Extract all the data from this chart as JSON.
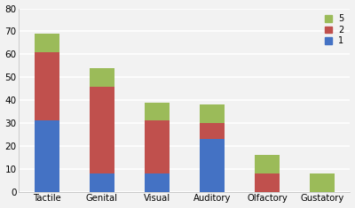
{
  "categories": [
    "Tactile",
    "Genital",
    "Visual",
    "Auditory",
    "Olfactory",
    "Gustatory"
  ],
  "series": {
    "1": [
      31,
      8,
      8,
      23,
      0,
      0
    ],
    "2": [
      30,
      38,
      23,
      7,
      8,
      0
    ],
    "5": [
      8,
      8,
      8,
      8,
      8,
      8
    ]
  },
  "colors": {
    "1": "#4472C4",
    "2": "#C0504D",
    "5": "#9BBB59"
  },
  "ylim": [
    0,
    80
  ],
  "yticks": [
    0,
    10,
    20,
    30,
    40,
    50,
    60,
    70,
    80
  ],
  "background_color": "#F2F2F2",
  "plot_bg_color": "#F2F2F2",
  "grid_color": "#FFFFFF",
  "bar_width": 0.45
}
